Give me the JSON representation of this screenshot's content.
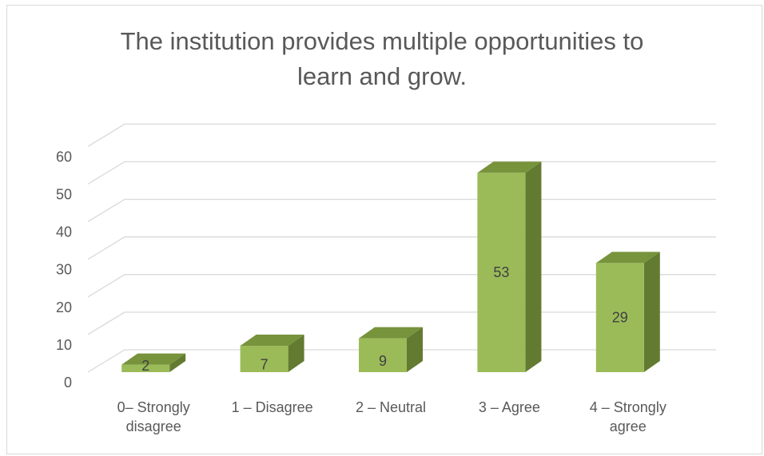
{
  "chart_data": {
    "type": "bar",
    "title": "The institution provides multiple opportunities to\nlearn and grow.",
    "categories": [
      [
        "0– Strongly",
        "disagree"
      ],
      [
        "1 – Disagree"
      ],
      [
        "2 – Neutral"
      ],
      [
        "3 – Agree"
      ],
      [
        "4 – Strongly",
        "agree"
      ]
    ],
    "values": [
      2,
      7,
      9,
      53,
      29
    ],
    "ylim": [
      0,
      60
    ],
    "yticks": [
      0,
      10,
      20,
      30,
      40,
      50,
      60
    ],
    "grid": true,
    "data_labels": true,
    "three_d": true,
    "colors": {
      "bar_front": "#9BBB59",
      "bar_top": "#77933C",
      "bar_side": "#637B31",
      "grid": "#d9d9d9",
      "text": "#595959"
    }
  }
}
